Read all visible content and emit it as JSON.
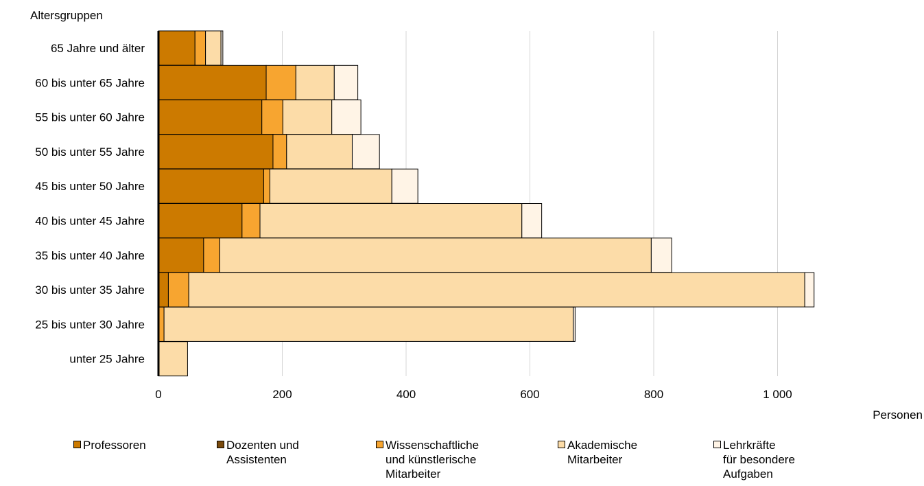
{
  "chart_data": {
    "type": "bar",
    "orientation": "horizontal",
    "stacked": true,
    "title": "",
    "ylabel": "Altersgruppen",
    "xlabel": "Personen",
    "categories": [
      "65 Jahre und älter",
      "60 bis unter 65 Jahre",
      "55 bis unter 60 Jahre",
      "50 bis unter 55 Jahre",
      "45 bis unter 50 Jahre",
      "40 bis unter 45 Jahre",
      "35 bis unter 40 Jahre",
      "30 bis unter 35 Jahre",
      "25 bis unter 30 Jahre",
      "unter 25 Jahre"
    ],
    "series": [
      {
        "name": "Professoren",
        "color": "#cc7a00",
        "values": [
          59,
          174,
          167,
          185,
          170,
          135,
          73,
          16,
          0,
          0
        ]
      },
      {
        "name": "Dozenten und\nAssistenten",
        "color": "#7a4a0c",
        "values": [
          0,
          0,
          0,
          0,
          0,
          0,
          0,
          0,
          0,
          0
        ]
      },
      {
        "name": "Wissenschaftliche\nund künstlerische\nMitarbeiter",
        "color": "#f7a530",
        "values": [
          17,
          48,
          34,
          22,
          10,
          29,
          26,
          33,
          9,
          0
        ]
      },
      {
        "name": "Akademische\nMitarbeiter",
        "color": "#fcdca8",
        "values": [
          25,
          62,
          79,
          106,
          197,
          423,
          697,
          995,
          661,
          47
        ]
      },
      {
        "name": "Lehrkräfte\nfür besondere\nAufgaben",
        "color": "#fff4e6",
        "values": [
          3,
          38,
          47,
          44,
          42,
          32,
          33,
          15,
          3,
          0
        ]
      }
    ],
    "xlim": [
      0,
      1100
    ],
    "xticks": [
      0,
      200,
      400,
      600,
      800,
      1000
    ],
    "xtick_labels": [
      "0",
      "200",
      "400",
      "600",
      "800",
      "1 000"
    ],
    "grid": true,
    "legend_position": "bottom"
  }
}
